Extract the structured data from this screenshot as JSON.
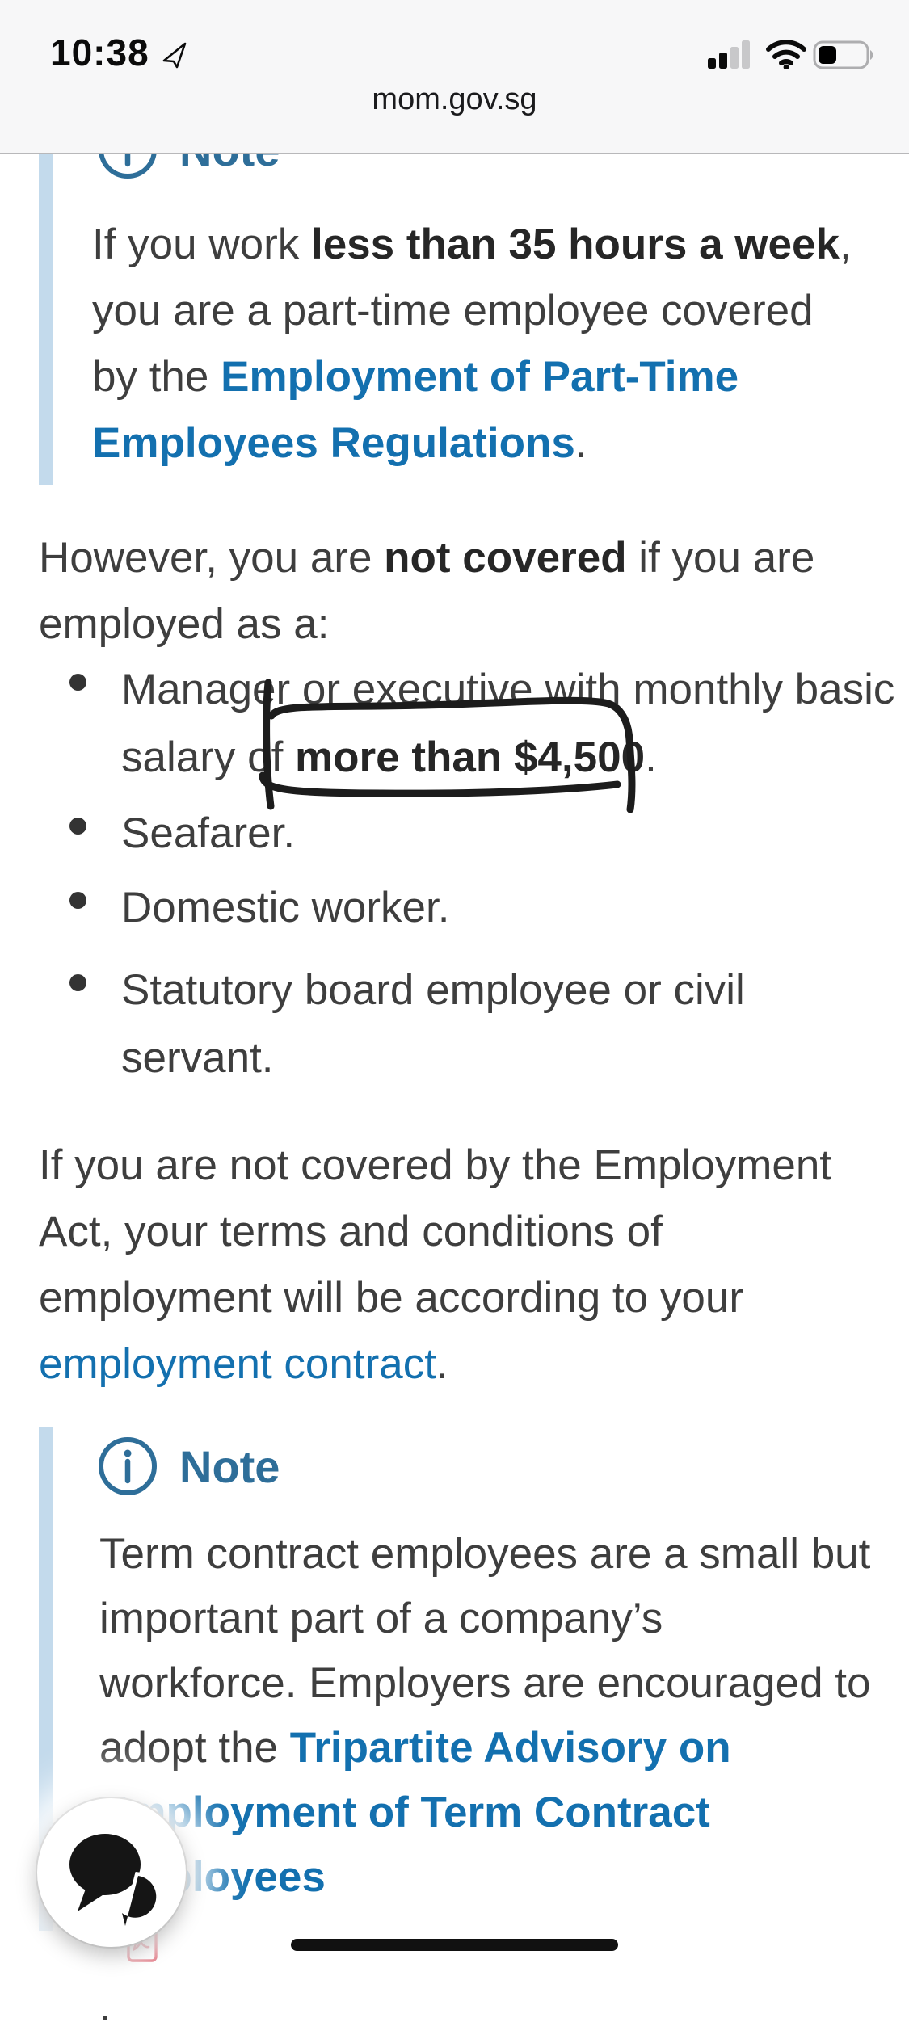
{
  "status_bar": {
    "time": "10:38",
    "location_services_on": true,
    "cellular_signal": {
      "filled_bars": 2,
      "total_bars": 4
    },
    "wifi_on": true,
    "battery_fill_ratio": 0.35
  },
  "browser": {
    "domain": "mom.gov.sg"
  },
  "colors": {
    "link": "#1370af",
    "note_accent": "#2e6e99",
    "note_bar": "#c3daec",
    "body_text": "#3e3e3e",
    "annotation": "#1c1c1c",
    "pdf_red": "#ce1126"
  },
  "note1": {
    "heading": "Note",
    "lines": [
      [
        {
          "s": "t",
          "x": "If you work "
        },
        {
          "s": "b",
          "x": "less than 35 hours a week"
        },
        {
          "s": "t",
          "x": ","
        }
      ],
      [
        {
          "s": "t",
          "x": "you are a part-time employee covered"
        }
      ],
      [
        {
          "s": "t",
          "x": "by the "
        },
        {
          "s": "lb",
          "x": "Employment of Part-Time"
        }
      ],
      [
        {
          "s": "lb",
          "x": "Employees Regulations"
        },
        {
          "s": "t",
          "x": "."
        }
      ]
    ]
  },
  "paragraph1": {
    "lines": [
      [
        {
          "s": "t",
          "x": "However, you are "
        },
        {
          "s": "b",
          "x": "not covered"
        },
        {
          "s": "t",
          "x": " if you are"
        }
      ],
      [
        {
          "s": "t",
          "x": "employed as a:"
        }
      ]
    ]
  },
  "list": {
    "items": [
      {
        "lines": [
          [
            {
              "s": "t",
              "x": "Manager or executive with monthly basic"
            }
          ],
          [
            {
              "s": "t",
              "x": "salary of "
            },
            {
              "s": "b",
              "x": "more than $4,500"
            },
            {
              "s": "t",
              "x": "."
            }
          ]
        ]
      },
      {
        "lines": [
          [
            {
              "s": "t",
              "x": "Seafarer."
            }
          ]
        ]
      },
      {
        "lines": [
          [
            {
              "s": "t",
              "x": "Domestic worker."
            }
          ]
        ]
      },
      {
        "lines": [
          [
            {
              "s": "t",
              "x": "Statutory board employee or civil"
            }
          ],
          [
            {
              "s": "t",
              "x": "servant."
            }
          ]
        ]
      }
    ]
  },
  "annotation": {
    "circled_text": "more than $4,500",
    "style": "hand-drawn box"
  },
  "paragraph2": {
    "lines": [
      [
        {
          "s": "t",
          "x": "If you are not covered by the Employment"
        }
      ],
      [
        {
          "s": "t",
          "x": "Act, your terms and conditions of"
        }
      ],
      [
        {
          "s": "t",
          "x": "employment will be according to your"
        }
      ],
      [
        {
          "s": "l",
          "x": "employment contract"
        },
        {
          "s": "t",
          "x": "."
        }
      ]
    ]
  },
  "note2": {
    "heading": "Note",
    "lines": [
      [
        {
          "s": "t",
          "x": "Term contract employees are a small but"
        }
      ],
      [
        {
          "s": "t",
          "x": "important part of a company’s"
        }
      ],
      [
        {
          "s": "t",
          "x": "workforce. Employers are encouraged to"
        }
      ],
      [
        {
          "s": "t",
          "x": "adopt the "
        },
        {
          "s": "lb",
          "x": "Tripartite Advisory on"
        }
      ],
      [
        {
          "s": "lb",
          "x": "Employment of Term Contract"
        }
      ],
      [
        {
          "s": "lb",
          "x": "Employees "
        },
        {
          "s": "pdficon"
        },
        {
          "s": "t",
          "x": "."
        }
      ]
    ]
  },
  "chat_button": {
    "icon": "chat-bubbles"
  },
  "home_indicator": true
}
